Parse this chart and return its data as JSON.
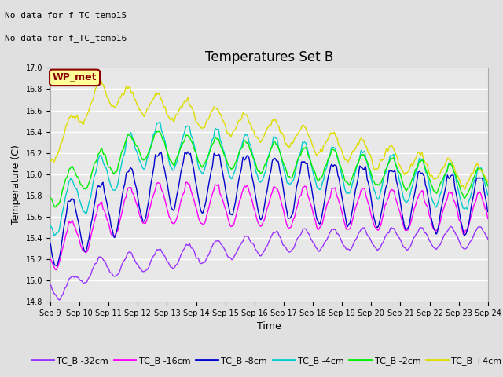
{
  "title": "Temperatures Set B",
  "xlabel": "Time",
  "ylabel": "Temperature (C)",
  "ylim": [
    14.8,
    17.0
  ],
  "xlim": [
    0,
    360
  ],
  "xtick_labels": [
    "Sep 9",
    "Sep 10",
    "Sep 11",
    "Sep 12",
    "Sep 13",
    "Sep 14",
    "Sep 15",
    "Sep 16",
    "Sep 17",
    "Sep 18",
    "Sep 19",
    "Sep 20",
    "Sep 21",
    "Sep 22",
    "Sep 23",
    "Sep 24"
  ],
  "xtick_positions": [
    0,
    24,
    48,
    72,
    96,
    120,
    144,
    168,
    192,
    216,
    240,
    264,
    288,
    312,
    336,
    360
  ],
  "ytick_labels": [
    "14.8",
    "15.0",
    "15.2",
    "15.4",
    "15.6",
    "15.8",
    "16.0",
    "16.2",
    "16.4",
    "16.6",
    "16.8",
    "17.0"
  ],
  "ytick_values": [
    14.8,
    15.0,
    15.2,
    15.4,
    15.6,
    15.8,
    16.0,
    16.2,
    16.4,
    16.6,
    16.8,
    17.0
  ],
  "series": {
    "TC_B -32cm": {
      "color": "#9933FF",
      "lw": 1.0
    },
    "TC_B -16cm": {
      "color": "#FF00FF",
      "lw": 1.0
    },
    "TC_B -8cm": {
      "color": "#0000CC",
      "lw": 1.0
    },
    "TC_B -4cm": {
      "color": "#00CCCC",
      "lw": 1.0
    },
    "TC_B -2cm": {
      "color": "#00EE00",
      "lw": 1.0
    },
    "TC_B +4cm": {
      "color": "#DDDD00",
      "lw": 1.0
    }
  },
  "no_data_text": [
    "No data for f_TC_temp15",
    "No data for f_TC_temp16"
  ],
  "wp_met_label": "WP_met",
  "wp_met_bg": "#FFFF99",
  "wp_met_border": "#8B0000",
  "background_color": "#E0E0E0",
  "plot_bg": "#E8E8E8",
  "grid_color": "#FFFFFF",
  "title_fontsize": 12,
  "axis_fontsize": 9,
  "tick_fontsize": 7,
  "legend_fontsize": 8,
  "nodata_fontsize": 8
}
